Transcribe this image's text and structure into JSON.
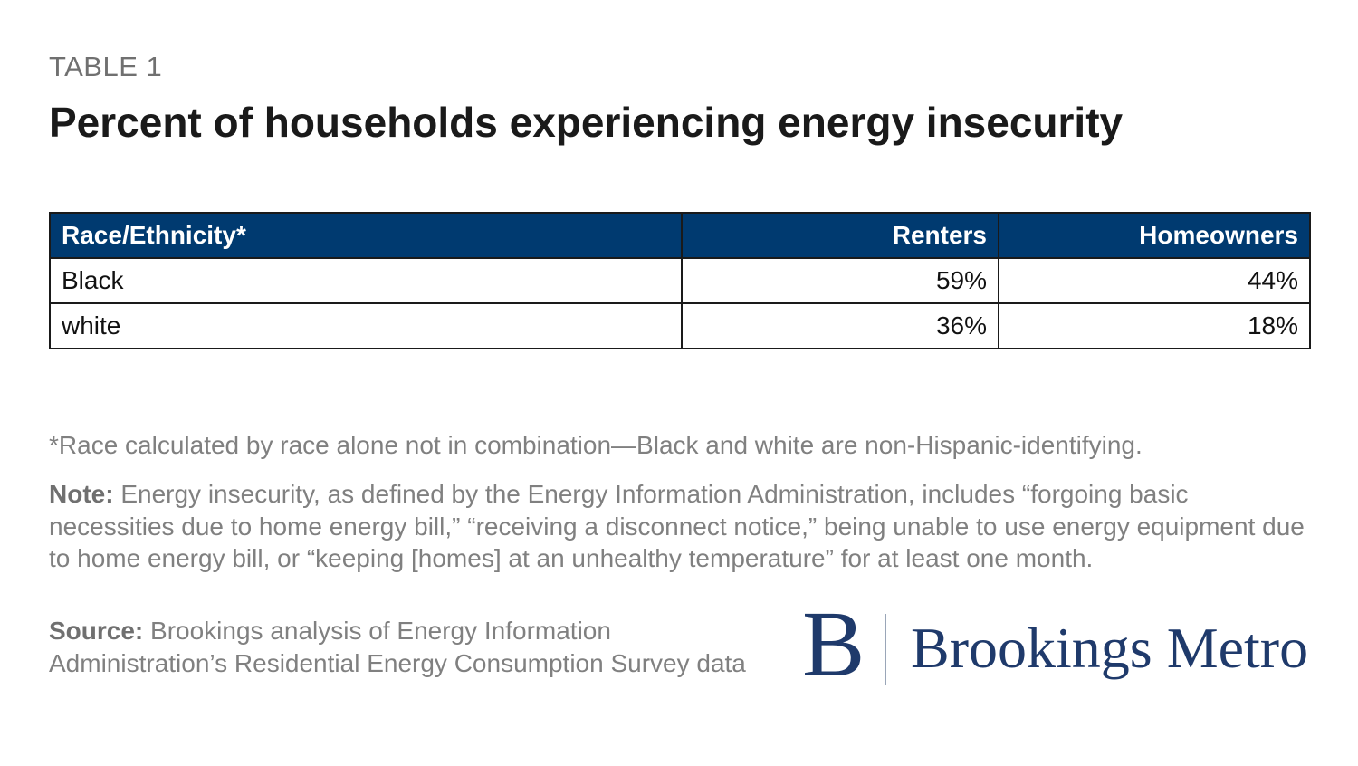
{
  "header": {
    "label": "TABLE 1",
    "title": "Percent of households experiencing energy insecurity"
  },
  "table": {
    "columns": [
      "Race/Ethnicity*",
      "Renters",
      "Homeowners"
    ],
    "rows": [
      [
        "Black",
        "59%",
        "44%"
      ],
      [
        "white",
        "36%",
        "18%"
      ]
    ]
  },
  "footnote": "*Race calculated by race alone not in combination—Black and white are non-Hispanic-identifying.",
  "note": {
    "label": "Note:",
    "text": "Energy insecurity, as defined by the Energy Information Administration, includes “forgoing basic necessities due to home energy bill,” “receiving a disconnect notice,” being unable to use energy equipment due to home energy bill, or “keeping [homes] at an unhealthy temperature” for at least one month."
  },
  "source": {
    "label": "Source:",
    "text": "Brookings analysis of Energy Information Administration’s Residential Energy Consumption Survey data"
  },
  "logo": {
    "mark": "B",
    "text": "Brookings Metro"
  }
}
